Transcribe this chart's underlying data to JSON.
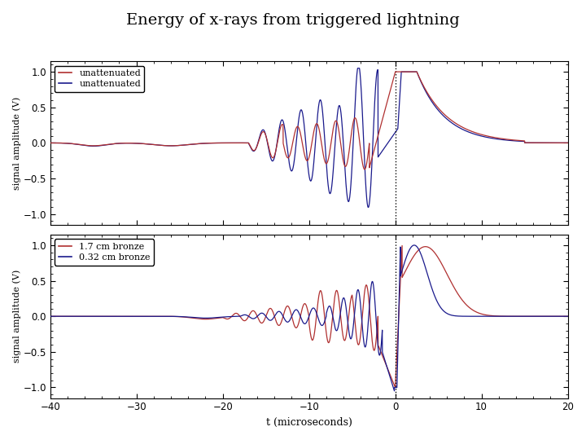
{
  "title": "Energy of x-rays from triggered lightning",
  "xlabel": "t (microseconds)",
  "ylabel": "signal amplitude (V)",
  "xlim": [
    -40,
    20
  ],
  "ylim": [
    -1.15,
    1.15
  ],
  "yticks": [
    -1.0,
    -0.5,
    0.0,
    0.5,
    1.0
  ],
  "xticks": [
    -40,
    -30,
    -20,
    -10,
    0,
    10,
    20
  ],
  "vline_x": 0,
  "red_color": "#b03030",
  "blue_color": "#1a1a8c",
  "legend1": [
    "unattenuated",
    "unattenuated"
  ],
  "legend2": [
    "1.7 cm bronze",
    "0.32 cm bronze"
  ],
  "background": "#ffffff",
  "figsize": [
    7.2,
    5.4
  ],
  "dpi": 100
}
